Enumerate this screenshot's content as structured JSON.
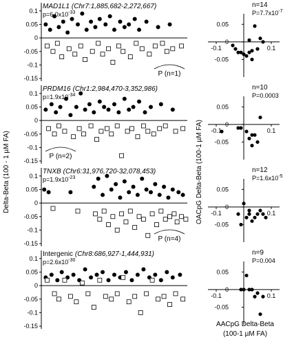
{
  "figure": {
    "y_label_left": "Delta-Beta (100 - 1 µM FA)",
    "y_label_right": "OACpG Delta-Beta (100-1 µM FA)",
    "x_label_right": [
      "AACpG Delta-Beta",
      "(100-1 µM FA)"
    ]
  },
  "chart_data": [
    {
      "type": "scatter",
      "title": "MAD1L1",
      "subtitle": "(Chr7:1,885,682-2,272,667)",
      "title_italic": true,
      "stat": "p=6.0x10",
      "stat_exponent": "-33",
      "annotation": "P (n=1)",
      "xlim": [
        0,
        100
      ],
      "ylim": [
        -0.16,
        0.13
      ],
      "yticks": [
        0.1,
        0.05,
        0,
        -0.05,
        -0.1,
        -0.15
      ],
      "series": [
        {
          "marker": "filled",
          "color": "#000000",
          "x": [
            3,
            6,
            9,
            12,
            15,
            18,
            21,
            25,
            28,
            31,
            34,
            37,
            40,
            44,
            47,
            50,
            54,
            57,
            60,
            64,
            67,
            72,
            80,
            88
          ],
          "values": [
            0.05,
            0.03,
            0.08,
            0.04,
            0.06,
            0.02,
            0.07,
            0.05,
            0.09,
            0.03,
            0.06,
            0.04,
            0.07,
            0.05,
            0.08,
            0.03,
            0.06,
            0.04,
            0.05,
            0.07,
            0.03,
            0.06,
            0.04,
            0.05
          ]
        },
        {
          "marker": "open",
          "color": "#000000",
          "x": [
            4,
            8,
            11,
            14,
            19,
            23,
            27,
            30,
            35,
            39,
            42,
            46,
            49,
            53,
            56,
            61,
            65,
            69,
            74,
            78,
            83,
            86,
            90,
            96
          ],
          "values": [
            -0.03,
            -0.05,
            -0.02,
            -0.07,
            -0.04,
            -0.06,
            -0.03,
            -0.08,
            -0.05,
            -0.02,
            -0.06,
            -0.04,
            -0.09,
            -0.03,
            -0.05,
            -0.07,
            -0.02,
            -0.04,
            -0.06,
            -0.03,
            -0.02,
            -0.05,
            -0.04,
            -0.03
          ]
        }
      ]
    },
    {
      "type": "scatter",
      "title": "PRDM16",
      "subtitle": "(Chr1:2,984,470-3,352,986)",
      "title_italic": true,
      "stat": "p=1.9x10",
      "stat_exponent": "-34",
      "annotation": "P (n=2)",
      "xlim": [
        0,
        100
      ],
      "ylim": [
        -0.16,
        0.13
      ],
      "yticks": [
        0.1,
        0.05,
        0,
        -0.05,
        -0.1,
        -0.15
      ],
      "series": [
        {
          "marker": "filled",
          "color": "#000000",
          "x": [
            3,
            7,
            10,
            13,
            17,
            20,
            24,
            27,
            30,
            33,
            36,
            40,
            43,
            46,
            50,
            53,
            57,
            60,
            63,
            67,
            71,
            75,
            82,
            90
          ],
          "values": [
            0.04,
            0.06,
            0.03,
            0.05,
            0.08,
            0.02,
            0.05,
            0.1,
            0.04,
            0.06,
            0.03,
            0.07,
            0.05,
            0.04,
            0.06,
            0.03,
            0.08,
            0.04,
            0.05,
            0.07,
            0.03,
            0.05,
            0.06,
            0.04
          ]
        },
        {
          "marker": "open",
          "color": "#000000",
          "x": [
            5,
            9,
            12,
            16,
            22,
            26,
            29,
            34,
            38,
            41,
            45,
            48,
            52,
            55,
            59,
            62,
            66,
            70,
            73,
            77,
            81,
            85,
            92,
            97
          ],
          "values": [
            -0.03,
            -0.05,
            -0.02,
            -0.04,
            -0.06,
            -0.03,
            -0.05,
            -0.02,
            -0.07,
            -0.04,
            -0.03,
            -0.05,
            -0.02,
            -0.13,
            -0.04,
            -0.03,
            -0.06,
            -0.02,
            -0.04,
            -0.05,
            -0.03,
            -0.02,
            -0.04,
            -0.03
          ]
        }
      ]
    },
    {
      "type": "scatter",
      "title": "TNXB",
      "subtitle": "(Chr6:31,976,720-32,078,453)",
      "title_italic": true,
      "stat": "p=1.9x10",
      "stat_exponent": "-23",
      "annotation": "P (n=4)",
      "xlim": [
        0,
        100
      ],
      "ylim": [
        -0.16,
        0.13
      ],
      "yticks": [
        0.1,
        0.05,
        0,
        -0.05,
        -0.1,
        -0.15
      ],
      "series": [
        {
          "marker": "filled",
          "color": "#000000",
          "x": [
            2,
            5,
            20,
            36,
            39,
            42,
            45,
            48,
            51,
            54,
            57,
            60,
            63,
            66,
            69,
            72,
            75,
            78,
            81,
            84,
            87,
            90,
            94,
            97
          ],
          "values": [
            0.05,
            0.04,
            0.04,
            0.06,
            0.09,
            0.03,
            0.1,
            0.05,
            0.07,
            0.02,
            0.08,
            0.04,
            0.06,
            0.03,
            0.09,
            0.05,
            0.04,
            0.07,
            0.03,
            0.06,
            0.02,
            0.05,
            0.04,
            0.03
          ]
        },
        {
          "marker": "open",
          "color": "#000000",
          "x": [
            8,
            25,
            37,
            40,
            43,
            46,
            49,
            52,
            55,
            58,
            61,
            64,
            67,
            70,
            73,
            76,
            79,
            82,
            85,
            88,
            91,
            93,
            96,
            99
          ],
          "values": [
            -0.02,
            -0.03,
            -0.04,
            -0.06,
            -0.03,
            -0.08,
            -0.05,
            -0.1,
            -0.04,
            -0.07,
            -0.03,
            -0.09,
            -0.05,
            -0.06,
            -0.12,
            -0.04,
            -0.08,
            -0.03,
            -0.06,
            -0.05,
            -0.04,
            -0.07,
            -0.05,
            -0.06
          ]
        }
      ]
    },
    {
      "type": "scatter",
      "title": "Intergenic",
      "subtitle": "(Chr8:686,927-1,444,931)",
      "title_italic": false,
      "stat": "p=2.6x10",
      "stat_exponent": "-30",
      "xlim": [
        0,
        100
      ],
      "ylim": [
        -0.16,
        0.13
      ],
      "yticks": [
        0.1,
        0.05,
        0,
        -0.05,
        -0.1,
        -0.15
      ],
      "series": [
        {
          "marker": "filled",
          "color": "#000000",
          "x": [
            3,
            7,
            11,
            14,
            18,
            22,
            26,
            30,
            34,
            38,
            42,
            46,
            50,
            54,
            58,
            62,
            66,
            70,
            74,
            78,
            82,
            86,
            90,
            95
          ],
          "values": [
            0.03,
            0.04,
            0.02,
            0.05,
            0.03,
            0.04,
            0.02,
            0.06,
            0.03,
            0.04,
            0.05,
            0.02,
            0.04,
            0.03,
            0.05,
            0.02,
            0.04,
            0.06,
            0.03,
            0.04,
            0.02,
            0.05,
            0.03,
            0.04
          ]
        },
        {
          "marker": "open",
          "color": "#000000",
          "x": [
            4,
            9,
            12,
            16,
            20,
            24,
            28,
            32,
            36,
            40,
            44,
            48,
            52,
            56,
            60,
            64,
            68,
            72,
            76,
            80,
            84,
            88,
            92,
            97
          ],
          "values": [
            0.02,
            -0.03,
            -0.05,
            0.02,
            -0.04,
            -0.06,
            0.01,
            -0.03,
            -0.08,
            0.02,
            -0.04,
            -0.05,
            -0.03,
            0.03,
            -0.06,
            -0.04,
            -0.1,
            -0.03,
            0.02,
            -0.05,
            -0.04,
            -0.07,
            -0.03,
            -0.05
          ]
        }
      ]
    },
    {
      "type": "scatter",
      "n": "n=14",
      "stat": "P=7.7x10",
      "stat_exponent": "-7",
      "xlim": [
        -0.13,
        0.13
      ],
      "ylim": [
        -0.1,
        0.08
      ],
      "xticks": [
        -0.1,
        0.1
      ],
      "yticks": [
        0.05,
        0,
        -0.05
      ],
      "series": [
        {
          "marker": "filled",
          "color": "#000000",
          "x": [
            -0.03,
            -0.02,
            -0.01,
            0,
            0.01,
            0.02,
            0.03,
            0.05,
            0.06,
            0.04,
            0.02,
            -0.04,
            0.07,
            0.03
          ],
          "values": [
            -0.02,
            -0.03,
            -0.03,
            -0.035,
            -0.04,
            -0.03,
            -0.05,
            -0.02,
            0.01,
            0.045,
            0.005,
            -0.01,
            0,
            -0.025
          ]
        }
      ]
    },
    {
      "type": "scatter",
      "n": "n=10",
      "stat": "P=0.0003",
      "xlim": [
        -0.13,
        0.13
      ],
      "ylim": [
        -0.1,
        0.08
      ],
      "xticks": [
        -0.1,
        0.1
      ],
      "yticks": [
        0.05,
        0,
        -0.05
      ],
      "series": [
        {
          "marker": "filled",
          "color": "#000000",
          "x": [
            -0.08,
            -0.02,
            -0.01,
            0.01,
            0.02,
            0.03,
            0.05,
            0.06,
            0.04,
            0.03
          ],
          "values": [
            -0.02,
            -0.01,
            -0.01,
            -0.02,
            -0.04,
            -0.03,
            -0.05,
            0.02,
            -0.03,
            -0.06
          ]
        }
      ]
    },
    {
      "type": "scatter",
      "n": "n=12",
      "stat": "P=1.6x10",
      "stat_exponent": "-5",
      "xlim": [
        -0.13,
        0.13
      ],
      "ylim": [
        -0.1,
        0.08
      ],
      "xticks": [
        -0.1,
        0.1
      ],
      "yticks": [
        0.05,
        0,
        -0.05
      ],
      "series": [
        {
          "marker": "filled",
          "color": "#000000",
          "x": [
            -0.02,
            0,
            0.01,
            0.02,
            0.03,
            0.04,
            0.05,
            0.06,
            0.07,
            -0.01,
            0.02,
            0.08
          ],
          "values": [
            -0.02,
            0.01,
            -0.03,
            -0.02,
            -0.04,
            -0.03,
            -0.02,
            -0.01,
            -0.02,
            -0.05,
            -0.01,
            -0.03
          ]
        }
      ]
    },
    {
      "type": "scatter",
      "n": "n=9",
      "stat": "P=0.004",
      "xlim": [
        -0.13,
        0.13
      ],
      "ylim": [
        -0.1,
        0.08
      ],
      "xticks": [
        -0.1,
        0.1
      ],
      "yticks": [
        0.05,
        0,
        -0.05
      ],
      "series": [
        {
          "marker": "filled",
          "color": "#000000",
          "x": [
            0.01,
            0,
            0.02,
            0.03,
            0.05,
            0.06,
            0.04,
            -0.01,
            0.07
          ],
          "values": [
            0.04,
            0,
            0,
            0,
            -0.01,
            -0.07,
            -0.02,
            0,
            -0.02
          ]
        }
      ]
    }
  ]
}
